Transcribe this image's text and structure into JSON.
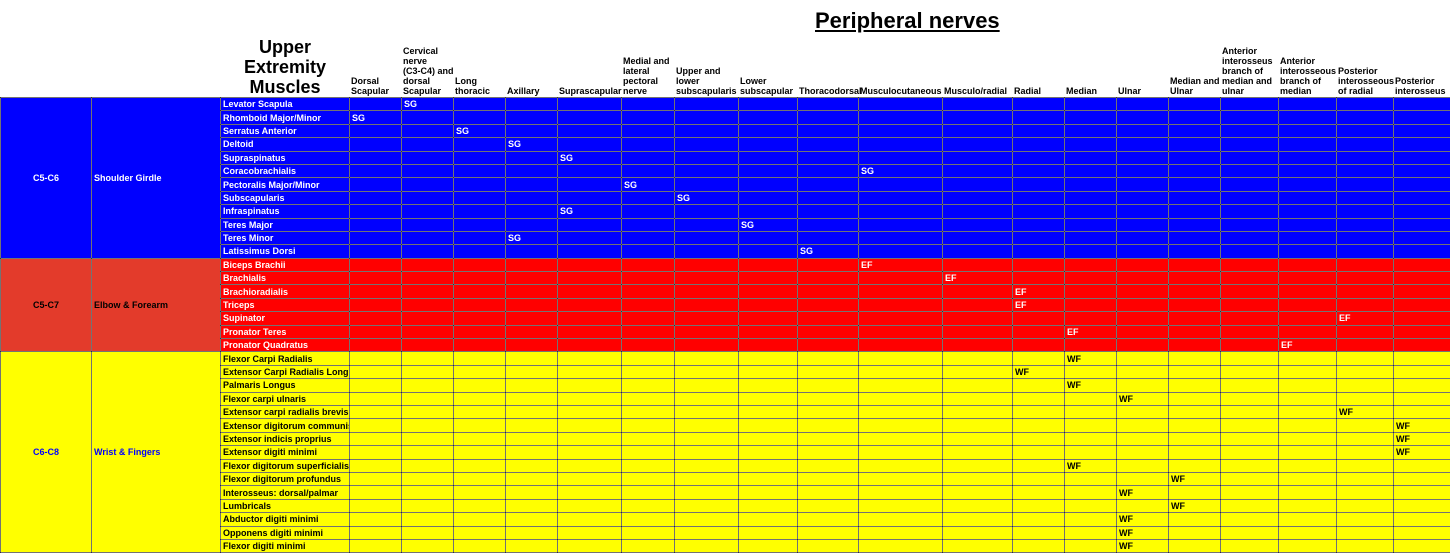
{
  "title": "Peripheral nerves",
  "subtitle": "Upper Extremity Muscles",
  "colors": {
    "shoulder": "#0000ff",
    "elbow": "#ff0000",
    "wrist": "#ffff00",
    "elbow_label": "#e33b2b"
  },
  "nerves": [
    "Dorsal\nScapular",
    "Cervical\nnerve\n(C3-C4) and\ndorsal\nScapular",
    "Long\nthoracic",
    "Axillary",
    "Suprascapular",
    "Medial and\nlateral\npectoral\nnerve",
    "Upper and\nlower\nsubscapularis",
    "Lower\nsubscapular",
    "Thoracodorsal",
    "Musculocutaneous",
    "Musculo/radial",
    "Radial",
    "Median",
    "Ulnar",
    "Median and\nUlnar",
    "Anterior\ninterosseus\nbranch of\nmedian and\nulnar",
    "Anterior\ninterosseous\nbranch of\nmedian",
    "Posterior\ninterosseous\nof radial",
    "Posterior\ninterosseus"
  ],
  "groups": [
    {
      "root": "C5-C6",
      "region": "Shoulder Girdle",
      "color": "blue",
      "rows": [
        {
          "muscle": "Levator Scapula",
          "nerve": 1,
          "code": "SG"
        },
        {
          "muscle": "Rhomboid Major/Minor",
          "nerve": 0,
          "code": "SG"
        },
        {
          "muscle": "Serratus Anterior",
          "nerve": 2,
          "code": "SG"
        },
        {
          "muscle": "Deltoid",
          "nerve": 3,
          "code": "SG"
        },
        {
          "muscle": "Supraspinatus",
          "nerve": 4,
          "code": "SG"
        },
        {
          "muscle": "Coracobrachialis",
          "nerve": 9,
          "code": "SG"
        },
        {
          "muscle": "Pectoralis Major/Minor",
          "nerve": 5,
          "code": "SG"
        },
        {
          "muscle": "Subscapularis",
          "nerve": 6,
          "code": "SG"
        },
        {
          "muscle": "Infraspinatus",
          "nerve": 4,
          "code": "SG"
        },
        {
          "muscle": "Teres Major",
          "nerve": 7,
          "code": "SG"
        },
        {
          "muscle": "Teres Minor",
          "nerve": 3,
          "code": "SG"
        },
        {
          "muscle": "Latissimus Dorsi",
          "nerve": 8,
          "code": "SG"
        }
      ]
    },
    {
      "root": "C5-C7",
      "region": "Elbow & Forearm",
      "color": "red",
      "rows": [
        {
          "muscle": "Biceps Brachii",
          "nerve": 9,
          "code": "EF"
        },
        {
          "muscle": "Brachialis",
          "nerve": 10,
          "code": "EF"
        },
        {
          "muscle": "Brachioradialis",
          "nerve": 11,
          "code": "EF"
        },
        {
          "muscle": "Triceps",
          "nerve": 11,
          "code": "EF"
        },
        {
          "muscle": "Supinator",
          "nerve": 17,
          "code": "EF"
        },
        {
          "muscle": "Pronator Teres",
          "nerve": 12,
          "code": "EF"
        },
        {
          "muscle": "Pronator Quadratus",
          "nerve": 16,
          "code": "EF"
        }
      ]
    },
    {
      "root": "C6-C8",
      "region": "Wrist & Fingers",
      "color": "yellow",
      "rows": [
        {
          "muscle": "Flexor Carpi Radialis",
          "nerve": 12,
          "code": "WF"
        },
        {
          "muscle": "Extensor Carpi Radialis Longus",
          "nerve": 11,
          "code": "WF"
        },
        {
          "muscle": "Palmaris Longus",
          "nerve": 12,
          "code": "WF"
        },
        {
          "muscle": "Flexor carpi ulnaris",
          "nerve": 13,
          "code": "WF"
        },
        {
          "muscle": "Extensor carpi radialis brevis",
          "nerve": 17,
          "code": "WF"
        },
        {
          "muscle": "Extensor digitorum communis",
          "nerve": 18,
          "code": "WF"
        },
        {
          "muscle": "Extensor indicis proprius",
          "nerve": 18,
          "code": "WF"
        },
        {
          "muscle": "Extensor digiti minimi",
          "nerve": 18,
          "code": "WF"
        },
        {
          "muscle": "Flexor digitorum superficialis",
          "nerve": 12,
          "code": "WF"
        },
        {
          "muscle": "Flexor digitorum profundus",
          "nerve": 14,
          "code": "WF"
        },
        {
          "muscle": "Interosseus: dorsal/palmar",
          "nerve": 13,
          "code": "WF"
        },
        {
          "muscle": "Lumbricals",
          "nerve": 14,
          "code": "WF"
        },
        {
          "muscle": "Abductor digiti minimi",
          "nerve": 13,
          "code": "WF"
        },
        {
          "muscle": "Opponens digiti minimi",
          "nerve": 13,
          "code": "WF"
        },
        {
          "muscle": "Flexor digiti minimi",
          "nerve": 13,
          "code": "WF"
        }
      ]
    }
  ]
}
